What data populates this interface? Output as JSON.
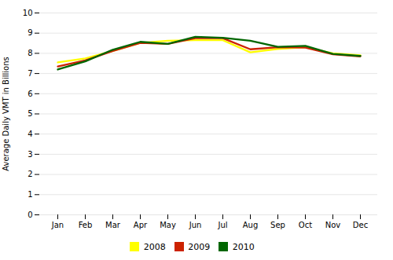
{
  "chart_data": {
    "type": "line",
    "ylabel": "Average Daily VMT in Billions",
    "categories": [
      "Jan",
      "Feb",
      "Mar",
      "Apr",
      "May",
      "Jun",
      "Jul",
      "Aug",
      "Sep",
      "Oct",
      "Nov",
      "Dec"
    ],
    "series": [
      {
        "name": "2008",
        "color": "#FFFF00",
        "values": [
          7.55,
          7.75,
          8.12,
          8.52,
          8.62,
          8.65,
          8.65,
          8.05,
          8.22,
          8.3,
          8.0,
          7.9
        ]
      },
      {
        "name": "2009",
        "color": "#CC2200",
        "values": [
          7.35,
          7.65,
          8.12,
          8.52,
          8.47,
          8.75,
          8.75,
          8.2,
          8.3,
          8.28,
          7.95,
          7.85
        ]
      },
      {
        "name": "2010",
        "color": "#006600",
        "values": [
          7.2,
          7.6,
          8.18,
          8.57,
          8.47,
          8.82,
          8.77,
          8.62,
          8.32,
          8.37,
          7.97,
          7.87
        ]
      }
    ],
    "ylim": [
      0,
      10
    ],
    "yticks": [
      0,
      1,
      2,
      3,
      4,
      5,
      6,
      7,
      8,
      9,
      10
    ],
    "grid": true,
    "legend": "bottom"
  }
}
